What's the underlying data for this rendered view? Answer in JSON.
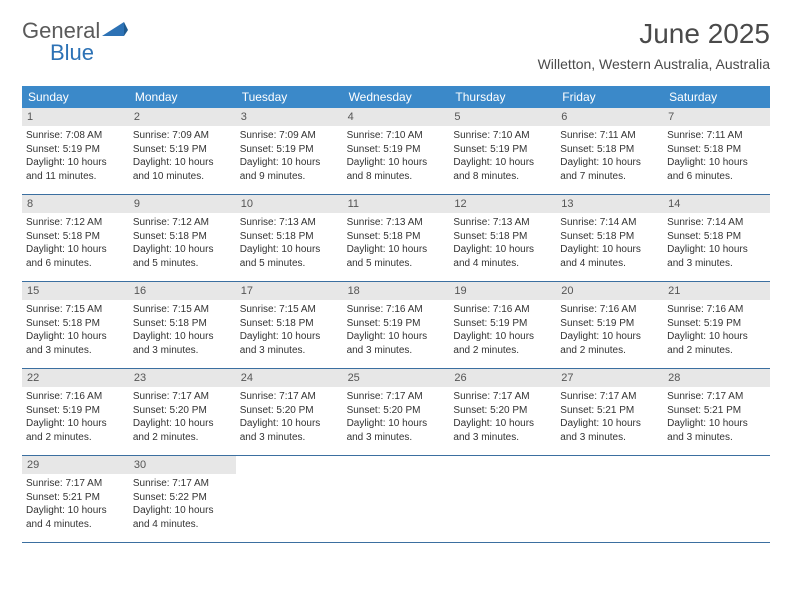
{
  "colors": {
    "header_bg": "#3b89c9",
    "header_text": "#ffffff",
    "daynum_bg": "#e7e7e7",
    "daynum_text": "#555555",
    "body_text": "#333333",
    "title_text": "#4a4a4a",
    "week_divider": "#3b6fa0",
    "logo_gray": "#5a5a5a",
    "logo_blue": "#2d72b5"
  },
  "logo": {
    "part1": "General",
    "part2": "Blue"
  },
  "title": "June 2025",
  "subtitle": "Willetton, Western Australia, Australia",
  "weekdays": [
    "Sunday",
    "Monday",
    "Tuesday",
    "Wednesday",
    "Thursday",
    "Friday",
    "Saturday"
  ],
  "days": [
    {
      "n": "1",
      "sunrise": "7:08 AM",
      "sunset": "5:19 PM",
      "daylight": "10 hours and 11 minutes."
    },
    {
      "n": "2",
      "sunrise": "7:09 AM",
      "sunset": "5:19 PM",
      "daylight": "10 hours and 10 minutes."
    },
    {
      "n": "3",
      "sunrise": "7:09 AM",
      "sunset": "5:19 PM",
      "daylight": "10 hours and 9 minutes."
    },
    {
      "n": "4",
      "sunrise": "7:10 AM",
      "sunset": "5:19 PM",
      "daylight": "10 hours and 8 minutes."
    },
    {
      "n": "5",
      "sunrise": "7:10 AM",
      "sunset": "5:19 PM",
      "daylight": "10 hours and 8 minutes."
    },
    {
      "n": "6",
      "sunrise": "7:11 AM",
      "sunset": "5:18 PM",
      "daylight": "10 hours and 7 minutes."
    },
    {
      "n": "7",
      "sunrise": "7:11 AM",
      "sunset": "5:18 PM",
      "daylight": "10 hours and 6 minutes."
    },
    {
      "n": "8",
      "sunrise": "7:12 AM",
      "sunset": "5:18 PM",
      "daylight": "10 hours and 6 minutes."
    },
    {
      "n": "9",
      "sunrise": "7:12 AM",
      "sunset": "5:18 PM",
      "daylight": "10 hours and 5 minutes."
    },
    {
      "n": "10",
      "sunrise": "7:13 AM",
      "sunset": "5:18 PM",
      "daylight": "10 hours and 5 minutes."
    },
    {
      "n": "11",
      "sunrise": "7:13 AM",
      "sunset": "5:18 PM",
      "daylight": "10 hours and 5 minutes."
    },
    {
      "n": "12",
      "sunrise": "7:13 AM",
      "sunset": "5:18 PM",
      "daylight": "10 hours and 4 minutes."
    },
    {
      "n": "13",
      "sunrise": "7:14 AM",
      "sunset": "5:18 PM",
      "daylight": "10 hours and 4 minutes."
    },
    {
      "n": "14",
      "sunrise": "7:14 AM",
      "sunset": "5:18 PM",
      "daylight": "10 hours and 3 minutes."
    },
    {
      "n": "15",
      "sunrise": "7:15 AM",
      "sunset": "5:18 PM",
      "daylight": "10 hours and 3 minutes."
    },
    {
      "n": "16",
      "sunrise": "7:15 AM",
      "sunset": "5:18 PM",
      "daylight": "10 hours and 3 minutes."
    },
    {
      "n": "17",
      "sunrise": "7:15 AM",
      "sunset": "5:18 PM",
      "daylight": "10 hours and 3 minutes."
    },
    {
      "n": "18",
      "sunrise": "7:16 AM",
      "sunset": "5:19 PM",
      "daylight": "10 hours and 3 minutes."
    },
    {
      "n": "19",
      "sunrise": "7:16 AM",
      "sunset": "5:19 PM",
      "daylight": "10 hours and 2 minutes."
    },
    {
      "n": "20",
      "sunrise": "7:16 AM",
      "sunset": "5:19 PM",
      "daylight": "10 hours and 2 minutes."
    },
    {
      "n": "21",
      "sunrise": "7:16 AM",
      "sunset": "5:19 PM",
      "daylight": "10 hours and 2 minutes."
    },
    {
      "n": "22",
      "sunrise": "7:16 AM",
      "sunset": "5:19 PM",
      "daylight": "10 hours and 2 minutes."
    },
    {
      "n": "23",
      "sunrise": "7:17 AM",
      "sunset": "5:20 PM",
      "daylight": "10 hours and 2 minutes."
    },
    {
      "n": "24",
      "sunrise": "7:17 AM",
      "sunset": "5:20 PM",
      "daylight": "10 hours and 3 minutes."
    },
    {
      "n": "25",
      "sunrise": "7:17 AM",
      "sunset": "5:20 PM",
      "daylight": "10 hours and 3 minutes."
    },
    {
      "n": "26",
      "sunrise": "7:17 AM",
      "sunset": "5:20 PM",
      "daylight": "10 hours and 3 minutes."
    },
    {
      "n": "27",
      "sunrise": "7:17 AM",
      "sunset": "5:21 PM",
      "daylight": "10 hours and 3 minutes."
    },
    {
      "n": "28",
      "sunrise": "7:17 AM",
      "sunset": "5:21 PM",
      "daylight": "10 hours and 3 minutes."
    },
    {
      "n": "29",
      "sunrise": "7:17 AM",
      "sunset": "5:21 PM",
      "daylight": "10 hours and 4 minutes."
    },
    {
      "n": "30",
      "sunrise": "7:17 AM",
      "sunset": "5:22 PM",
      "daylight": "10 hours and 4 minutes."
    }
  ],
  "labels": {
    "sunrise": "Sunrise: ",
    "sunset": "Sunset: ",
    "daylight": "Daylight: "
  }
}
